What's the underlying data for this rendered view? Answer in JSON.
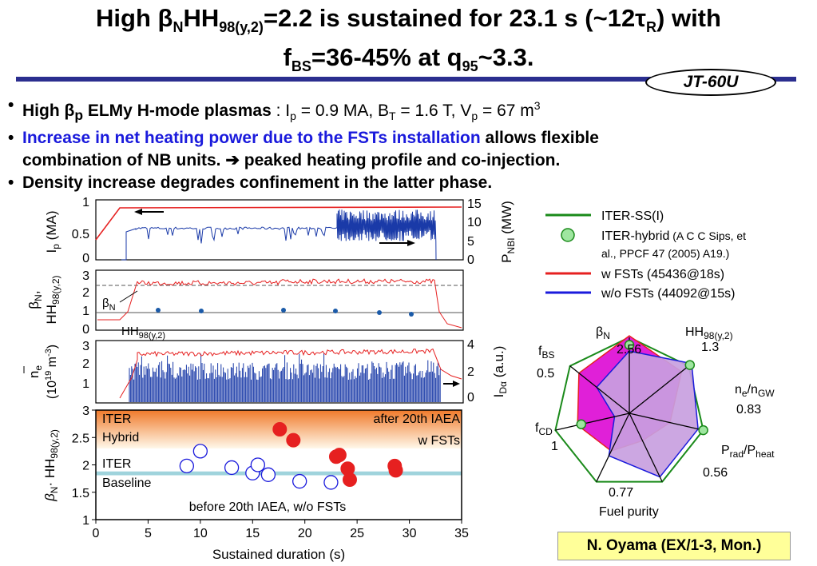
{
  "header": {
    "title_line1_parts": [
      "High β",
      "N",
      "HH",
      "98(y,2)",
      "=2.2 is sustained for 23.1 s (~12τ",
      "R",
      ") with"
    ],
    "title_line2_parts": [
      "f",
      "BS",
      "=36-45% at q",
      "95",
      "~3.3."
    ],
    "badge": "JT-60U"
  },
  "bullets": {
    "b1_bold_a": "High β",
    "b1_sub_p": "p",
    "b1_bold_b": " ELMy H-mode plasmas",
    "b1_rest_a": " : I",
    "b1_rest_sub_p": "p",
    "b1_rest_b": " = 0.9 MA, B",
    "b1_rest_sub_t": "T",
    "b1_rest_c": " = 1.6 T, V",
    "b1_rest_d": " = 67 m",
    "b1_rest_sup": "3",
    "b2_blue": "Increase in net heating power due to the FSTs installation",
    "b2_black": " allows flexible",
    "b2_line2": "combination of NB units. ➔ peaked heating profile and co-injection.",
    "b3": "Density increase degrades confinement in the latter phase."
  },
  "traces": {
    "ip_ylabel": "I",
    "ip_ylabel_sub": "p",
    "ip_ylabel_unit": " (MA)",
    "ip_ticks": [
      "1",
      "0.5",
      "0"
    ],
    "pnbi_ticks": [
      "15",
      "10",
      "5",
      "0"
    ],
    "pnbi_ylabel": "P",
    "pnbi_ylabel_sub": "NBI",
    "pnbi_ylabel_unit": " (MW)",
    "beta_ylabel_a": "β",
    "beta_ylabel_a_sub": "N",
    "beta_ylabel_b": ",",
    "beta_ylabel_c": "HH",
    "beta_ylabel_c_sub": "98(y,2)",
    "beta_ticks": [
      "3",
      "2",
      "1",
      "0"
    ],
    "beta_label": "β",
    "beta_label_sub": "N",
    "hh_label": "HH",
    "hh_label_sub": "98(y,2)",
    "ne_ylabel_a": "n",
    "ne_ylabel_a_sub": "e",
    "ne_ylabel_b": "(10",
    "ne_ylabel_b_sup": "19",
    "ne_ylabel_c": " m",
    "ne_ylabel_c_sup": "-3",
    "ne_ylabel_d": ")",
    "ne_ticks": [
      "3",
      "2",
      "1"
    ],
    "ida_ticks": [
      "4",
      "2",
      "0"
    ],
    "ida_ylabel": "I",
    "ida_ylabel_sub": "Dα",
    "ida_ylabel_unit": " (a.u.)"
  },
  "legend": {
    "items": [
      {
        "label": "ITER-SS(I)",
        "color": "#1a8a1a",
        "marker": "line"
      },
      {
        "label": "ITER-hybrid",
        "note": " (A C C Sips, et",
        "note2": "al., PPCF 47 (2005) A19.)",
        "color": "#1a8a1a",
        "marker": "circle"
      },
      {
        "label": "w FSTs (45436@18s)",
        "color": "#e62020",
        "marker": "line"
      },
      {
        "label": "w/o FSTs (44092@15s)",
        "color": "#1a1adc",
        "marker": "line"
      }
    ]
  },
  "chart_data": [
    {
      "type": "scatter",
      "xlabel": "Sustained duration (s)",
      "ylabel_a": "β",
      "ylabel_a_sub": "N",
      "ylabel_b": "· HH",
      "ylabel_b_sub": "98(y,2)",
      "xlim": [
        0,
        35
      ],
      "ylim": [
        1,
        3
      ],
      "xticks": [
        0,
        5,
        10,
        15,
        20,
        25,
        30,
        35
      ],
      "yticks": [
        1,
        1.5,
        2,
        2.5,
        3
      ],
      "annotations": {
        "iter_hybrid_a": "ITER",
        "iter_hybrid_b": "Hybrid",
        "iter_base_a": "ITER",
        "iter_base_b": "Baseline",
        "after": "after 20th IAEA",
        "after_b": "w FSTs",
        "before": "before 20th IAEA, w/o FSTs"
      },
      "bands": {
        "hybrid": [
          2.3,
          3.0
        ],
        "baseline": [
          1.81,
          1.88
        ]
      },
      "series": [
        {
          "marker": "open-circle",
          "color": "#1a1adc",
          "x": [
            8.7,
            10.0,
            13.0,
            15.0,
            15.5,
            16.5,
            19.5,
            22.5
          ],
          "y": [
            1.98,
            2.25,
            1.95,
            1.85,
            2.0,
            1.82,
            1.7,
            1.68
          ]
        },
        {
          "marker": "filled-circle",
          "color": "#e62020",
          "x": [
            17.6,
            18.9,
            23.0,
            23.3,
            24.1,
            24.3,
            28.6,
            28.7
          ],
          "y": [
            2.65,
            2.45,
            2.15,
            2.18,
            1.93,
            1.73,
            1.98,
            1.9
          ]
        }
      ]
    },
    {
      "type": "radar",
      "axes": [
        {
          "label": "β",
          "sub": "N",
          "value_label": "2.56"
        },
        {
          "label": "HH",
          "sub": "98(y,2)",
          "value_label": "1.3"
        },
        {
          "label": "n",
          "sub": "e",
          "label_b": "/n",
          "sub_b": "GW",
          "value_label": "0.83"
        },
        {
          "label": "P",
          "sub": "rad",
          "label_b": "/P",
          "sub_b": "heat",
          "value_label": "0.56"
        },
        {
          "label": "Fuel purity",
          "value_label": "0.77"
        },
        {
          "label": "f",
          "sub": "CD",
          "value_label": "1"
        },
        {
          "label": "f",
          "sub": "BS",
          "value_label": "0.5"
        }
      ],
      "series": [
        {
          "name": "ITER-SS(I)",
          "color": "#1a8a1a",
          "values": [
            1,
            1,
            1,
            1,
            1,
            1,
            1
          ]
        },
        {
          "name": "w FSTs (45436@18s)",
          "color": "#e62020",
          "values": [
            1.02,
            0.88,
            0.55,
            0.4,
            0.55,
            0.7,
            0.85
          ]
        },
        {
          "name": "w/o FSTs (44092@15s)",
          "color": "#1a1adc",
          "values": [
            0.82,
            1.05,
            0.93,
            0.93,
            0.62,
            0.2,
            0.55
          ]
        },
        {
          "name": "ITER-hybrid",
          "color": "#1a8a1a",
          "marker": "circle",
          "values": [
            0.9,
            1.02,
            1.0,
            null,
            null,
            0.65,
            null
          ]
        }
      ]
    }
  ],
  "credit": "N. Oyama (EX/1-3, Mon.)"
}
